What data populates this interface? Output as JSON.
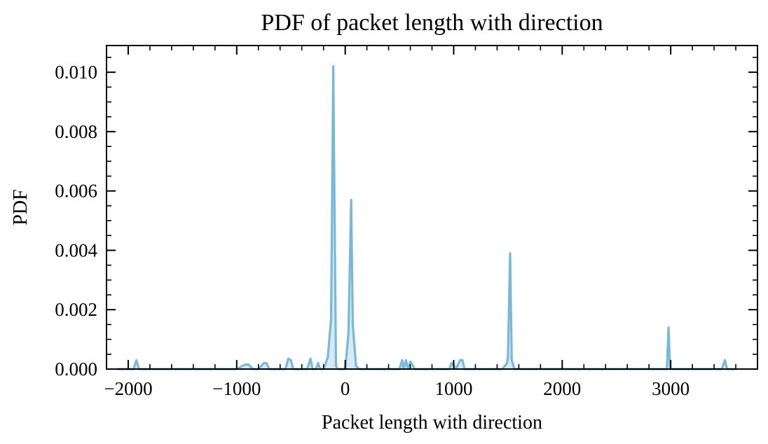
{
  "chart_data": {
    "type": "area",
    "title": "PDF of packet length with direction",
    "xlabel": "Packet length with direction",
    "ylabel": "PDF",
    "xlim": [
      -2200,
      3800
    ],
    "ylim": [
      0,
      0.0109
    ],
    "xticks": [
      -2000,
      -1000,
      0,
      1000,
      2000,
      3000
    ],
    "xtick_labels": [
      "−2000",
      "−1000",
      "0",
      "1000",
      "2000",
      "3000"
    ],
    "yticks": [
      0,
      0.002,
      0.004,
      0.006,
      0.008,
      0.01
    ],
    "ytick_labels": [
      "0.000",
      "0.002",
      "0.004",
      "0.006",
      "0.008",
      "0.010"
    ],
    "grid": false,
    "legend": "none",
    "series": [
      {
        "color": "#7ab8d9",
        "fill": "#d6e9f4",
        "x": [
          -2100,
          -1950,
          -1925,
          -1900,
          -1000,
          -925,
          -890,
          -850,
          -800,
          -750,
          -725,
          -700,
          -550,
          -525,
          -500,
          -480,
          -460,
          -350,
          -320,
          -300,
          -270,
          -250,
          -230,
          -200,
          -160,
          -130,
          -110,
          -85,
          -70,
          -55,
          -40,
          0,
          30,
          55,
          70,
          85,
          100,
          130,
          160,
          200,
          500,
          525,
          540,
          560,
          580,
          600,
          620,
          640,
          680,
          960,
          980,
          1000,
          1020,
          1060,
          1080,
          1100,
          1125,
          1450,
          1490,
          1500,
          1520,
          1535,
          1560,
          2950,
          2965,
          2980,
          2995,
          3470,
          3500,
          3520,
          3600
        ],
        "y": [
          0,
          0,
          0.0003,
          0,
          0,
          0.00015,
          0.00015,
          0,
          0,
          0.0002,
          0.0002,
          0,
          0,
          0.00035,
          0.0003,
          0,
          0,
          0,
          0.00035,
          0,
          0,
          0.0002,
          0,
          0,
          0.0004,
          0.0017,
          0.0102,
          0.0001,
          0,
          0,
          0,
          0,
          0.0012,
          0.0057,
          0.0015,
          0.0008,
          0.0001,
          0,
          0,
          0,
          0,
          0.0003,
          0,
          0.0003,
          0,
          0.00025,
          0.00015,
          0,
          0,
          0,
          0.0002,
          0.00015,
          0,
          0.0003,
          0.0003,
          0,
          0,
          0,
          0.0002,
          0.0004,
          0.0039,
          0.0003,
          0,
          0,
          0,
          0.0014,
          0,
          0,
          0.0003,
          0,
          0
        ]
      }
    ]
  }
}
